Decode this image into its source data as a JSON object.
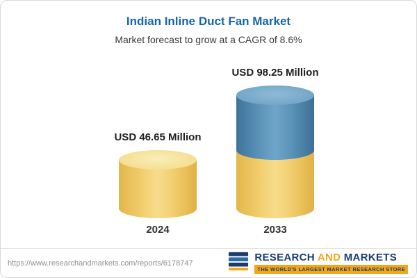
{
  "header": {
    "title": "Indian Inline Duct Fan Market",
    "subtitle": "Market forecast to grow at a CAGR of 8.6%"
  },
  "chart_data": {
    "type": "bar",
    "subtype": "3d-cylinder",
    "title": "Indian Inline Duct Fan Market",
    "subtitle": "Market forecast to grow at a CAGR of 8.6%",
    "cagr_percent": 8.6,
    "unit": "USD Million",
    "categories": [
      "2024",
      "2033"
    ],
    "values": [
      46.65,
      98.25
    ],
    "value_labels": [
      "USD 46.65 Million",
      "USD 98.25 Million"
    ],
    "ylim": [
      0,
      110
    ],
    "grid": false,
    "legend": false,
    "colors": {
      "bar_2024": "#F0C95C",
      "bar_2033_base": "#F0C95C",
      "bar_2033_top": "#4E86AE"
    }
  },
  "footer": {
    "url": "https://www.researchandmarkets.com/reports/6178747",
    "brand": {
      "word1": "RESEARCH",
      "word2": "AND",
      "word3": "MARKETS",
      "tagline": "THE WORLD'S LARGEST MARKET RESEARCH STORE"
    }
  },
  "colors": {
    "title": "#1565A9",
    "subtitle": "#3A3A3A",
    "brand_navy": "#1B3D6E",
    "brand_gold": "#F2A71B"
  }
}
